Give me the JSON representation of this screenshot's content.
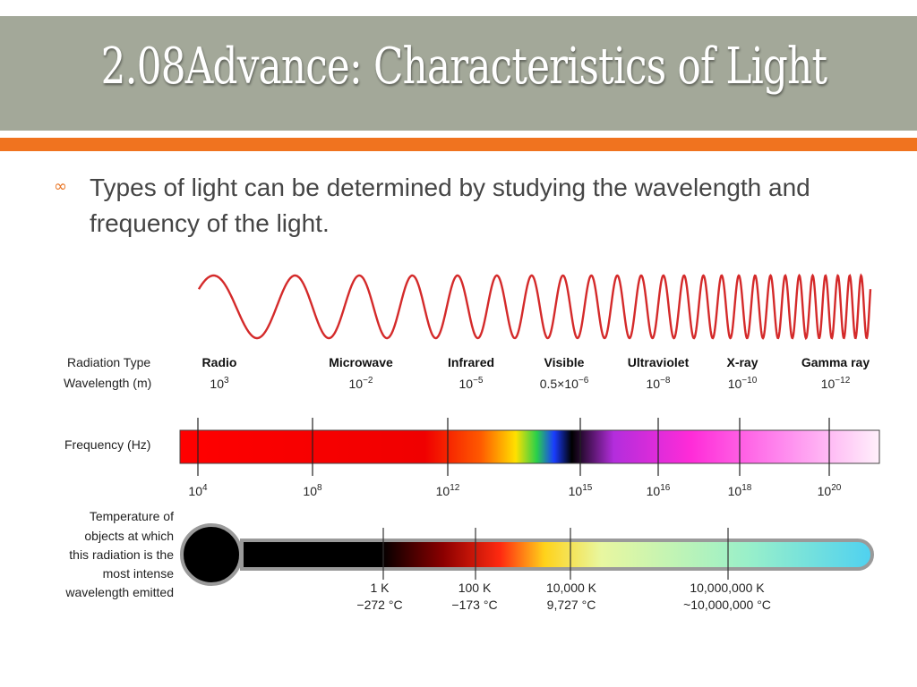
{
  "slide": {
    "title": "2.08Advance: Characteristics of Light",
    "bullet_text": "Types of light can be determined by studying the wavelength and frequency of the light."
  },
  "diagram": {
    "row_labels": {
      "radiation_type": "Radiation Type",
      "wavelength": "Wavelength (m)",
      "frequency": "Frequency (Hz)",
      "temperature": [
        "Temperature of",
        "objects at which",
        "this radiation is the",
        "most intense",
        "wavelength emitted"
      ]
    },
    "radiation_types": [
      {
        "name": "Radio",
        "wl_base": "10",
        "wl_exp": "3"
      },
      {
        "name": "Microwave",
        "wl_base": "10",
        "wl_exp": "−2"
      },
      {
        "name": "Infrared",
        "wl_base": "10",
        "wl_exp": "−5"
      },
      {
        "name": "Visible",
        "wl_base": "0.5×10",
        "wl_exp": "−6"
      },
      {
        "name": "Ultraviolet",
        "wl_base": "10",
        "wl_exp": "−8"
      },
      {
        "name": "X-ray",
        "wl_base": "10",
        "wl_exp": "−10"
      },
      {
        "name": "Gamma ray",
        "wl_base": "10",
        "wl_exp": "−12"
      }
    ],
    "frequency_ticks": [
      {
        "base": "10",
        "exp": "4"
      },
      {
        "base": "10",
        "exp": "8"
      },
      {
        "base": "10",
        "exp": "12"
      },
      {
        "base": "10",
        "exp": "15"
      },
      {
        "base": "10",
        "exp": "16"
      },
      {
        "base": "10",
        "exp": "18"
      },
      {
        "base": "10",
        "exp": "20"
      }
    ],
    "temperature_ticks": [
      {
        "kelvin": "1 K",
        "celsius": "−272 °C"
      },
      {
        "kelvin": "100 K",
        "celsius": "−173 °C"
      },
      {
        "kelvin": "10,000 K",
        "celsius": "9,727 °C"
      },
      {
        "kelvin": "10,000,000 K",
        "celsius": "~10,000,000 °C"
      }
    ],
    "colors": {
      "wave": "#d42a2a",
      "title_bar": "#a3a899",
      "accent_stripe": "#f0731f"
    }
  }
}
